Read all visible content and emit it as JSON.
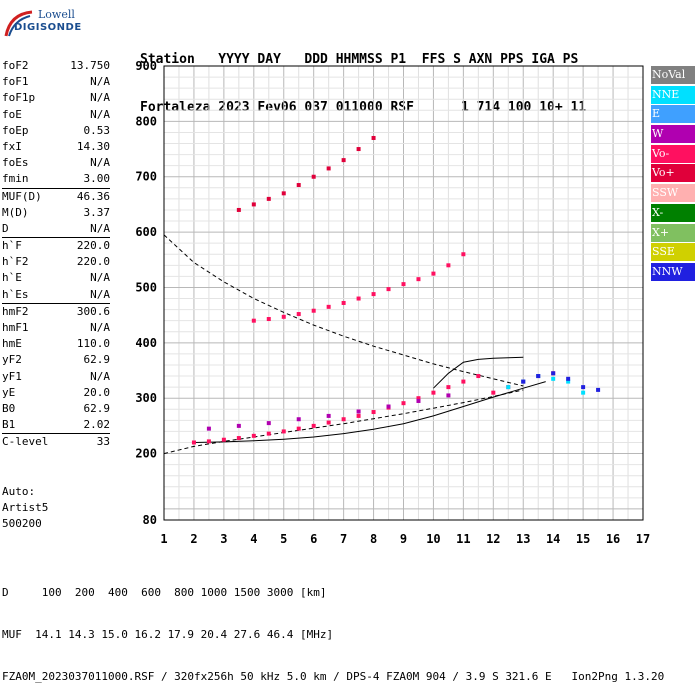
{
  "logo": {
    "line1": "Lowell",
    "line2": "DIGISONDE"
  },
  "header": {
    "labels": [
      "Station",
      "YYYY DAY",
      "DDD HHMMSS P1",
      "FFS S AXN PPS IGA PS"
    ],
    "values": [
      "Fortaleza",
      "2023 Fev06",
      "037 011000 RSF",
      "1 714 100 10+ 11"
    ]
  },
  "params": [
    {
      "label": "foF2",
      "value": "13.750"
    },
    {
      "label": "foF1",
      "value": "N/A"
    },
    {
      "label": "foF1p",
      "value": "N/A"
    },
    {
      "label": "foE",
      "value": "N/A"
    },
    {
      "label": "foEp",
      "value": "0.53"
    },
    {
      "label": "fxI",
      "value": "14.30"
    },
    {
      "label": "foEs",
      "value": "N/A"
    },
    {
      "label": "fmin",
      "value": "3.00",
      "sep": true
    },
    {
      "label": "MUF(D)",
      "value": "46.36"
    },
    {
      "label": "M(D)",
      "value": "3.37"
    },
    {
      "label": "D",
      "value": "N/A",
      "sep": true
    },
    {
      "label": "h`F",
      "value": "220.0"
    },
    {
      "label": "h`F2",
      "value": "220.0"
    },
    {
      "label": "h`E",
      "value": "N/A"
    },
    {
      "label": "h`Es",
      "value": "N/A",
      "sep": true
    },
    {
      "label": "hmF2",
      "value": "300.6"
    },
    {
      "label": "hmF1",
      "value": "N/A"
    },
    {
      "label": "hmE",
      "value": "110.0"
    },
    {
      "label": "yF2",
      "value": "62.9"
    },
    {
      "label": "yF1",
      "value": "N/A"
    },
    {
      "label": "yE",
      "value": "20.0"
    },
    {
      "label": "B0",
      "value": "62.9"
    },
    {
      "label": "B1",
      "value": "2.02",
      "sep": true
    },
    {
      "label": "C-level",
      "value": "33"
    }
  ],
  "auto": {
    "line1": "Auto:",
    "line2": "Artist5",
    "line3": "500200"
  },
  "legend": [
    {
      "label": "NoVal",
      "color": "#808080"
    },
    {
      "label": "NNE",
      "color": "#00e0ff"
    },
    {
      "label": "E",
      "color": "#3fa0ff"
    },
    {
      "label": "W",
      "color": "#b000b0"
    },
    {
      "label": "Vo-",
      "color": "#ff1060"
    },
    {
      "label": "Vo+",
      "color": "#e0003a"
    },
    {
      "label": "SSW",
      "color": "#ffb0b0"
    },
    {
      "label": "X-",
      "color": "#008000"
    },
    {
      "label": "X+",
      "color": "#80c060"
    },
    {
      "label": "SSE",
      "color": "#d0d000"
    },
    {
      "label": "NNW",
      "color": "#2020e0"
    }
  ],
  "chart_data": {
    "type": "scatter",
    "xlim": [
      1,
      17
    ],
    "ylim": [
      80,
      900
    ],
    "x_ticks": [
      "1",
      "2",
      "3",
      "4",
      "5",
      "6",
      "7",
      "8",
      "9",
      "10",
      "11",
      "12",
      "13",
      "14",
      "15",
      "16",
      "17"
    ],
    "y_ticks": [
      "80",
      "200",
      "300",
      "400",
      "500",
      "600",
      "700",
      "800",
      "900"
    ],
    "grid": true,
    "series": [
      {
        "color": "#ff1060",
        "x": [
          2.0,
          2.5,
          3.0,
          3.5,
          4.0,
          4.5,
          5.0,
          5.5,
          6.0,
          6.5,
          7.0,
          7.5,
          8.0,
          8.5,
          9.0,
          9.5,
          10.0,
          10.5,
          11.0,
          11.5,
          12.0,
          12.5,
          13.0,
          13.5,
          14.0
        ],
        "y": [
          220,
          222,
          225,
          228,
          232,
          236,
          240,
          245,
          250,
          256,
          262,
          268,
          275,
          283,
          291,
          300,
          310,
          320,
          330,
          340,
          310,
          320,
          330,
          340,
          345
        ]
      },
      {
        "color": "#b000b0",
        "x": [
          2.5,
          3.5,
          4.5,
          5.5,
          6.5,
          7.5,
          8.5,
          9.5,
          10.5
        ],
        "y": [
          245,
          250,
          255,
          262,
          268,
          276,
          285,
          295,
          305
        ]
      },
      {
        "color": "#ff1060",
        "x": [
          4.0,
          4.5,
          5.0,
          5.5,
          6.0,
          6.5,
          7.0,
          7.5,
          8.0,
          8.5,
          9.0,
          9.5,
          10.0,
          10.5,
          11.0
        ],
        "y": [
          440,
          443,
          447,
          452,
          458,
          465,
          472,
          480,
          488,
          497,
          506,
          515,
          525,
          540,
          560
        ]
      },
      {
        "color": "#e0003a",
        "x": [
          3.5,
          4.0,
          4.5,
          5.0,
          5.5,
          6.0,
          6.5,
          7.0,
          7.5,
          8.0
        ],
        "y": [
          640,
          650,
          660,
          670,
          685,
          700,
          715,
          730,
          750,
          770
        ]
      },
      {
        "color": "#00e0ff",
        "x": [
          12.5,
          13.0,
          13.5,
          14.0,
          14.5,
          15.0
        ],
        "y": [
          320,
          330,
          340,
          335,
          330,
          310
        ]
      },
      {
        "color": "#2020e0",
        "x": [
          13.0,
          13.5,
          14.0,
          14.5,
          15.0,
          15.5
        ],
        "y": [
          330,
          340,
          345,
          335,
          320,
          315
        ]
      }
    ],
    "curves": [
      {
        "style": "dashed",
        "x": [
          1.0,
          2.0,
          3.0,
          4.0,
          5.0,
          6.0,
          7.0,
          8.0,
          9.0,
          10.0,
          11.0,
          12.0,
          13.0
        ],
        "y": [
          595,
          545,
          510,
          480,
          455,
          432,
          412,
          394,
          378,
          362,
          348,
          335,
          322
        ]
      },
      {
        "style": "dashed",
        "x": [
          1.0,
          2.0,
          3.0,
          4.0,
          5.0,
          6.0,
          7.0,
          8.0,
          9.0,
          10.0,
          11.0,
          12.0,
          13.0
        ],
        "y": [
          200,
          213,
          222,
          230,
          238,
          246,
          254,
          263,
          272,
          282,
          292,
          303,
          315
        ]
      },
      {
        "style": "solid",
        "x": [
          2.0,
          3.0,
          4.0,
          5.0,
          6.0,
          7.0,
          8.0,
          9.0,
          10.0,
          11.0,
          12.0,
          13.0,
          13.75
        ],
        "y": [
          220,
          221,
          223,
          226,
          230,
          236,
          244,
          254,
          268,
          285,
          302,
          318,
          330
        ]
      },
      {
        "style": "solid",
        "x": [
          10.0,
          10.5,
          11.0,
          11.5,
          12.0,
          12.5,
          13.0
        ],
        "y": [
          318,
          345,
          365,
          370,
          372,
          373,
          374
        ]
      }
    ]
  },
  "footer": {
    "line1": "D     100  200  400  600  800 1000 1500 3000 [km]",
    "line2": "MUF  14.1 14.3 15.0 16.2 17.9 20.4 27.6 46.4 [MHz]",
    "line3": "FZA0M_2023037011000.RSF / 320fx256h 50 kHz 5.0 km / DPS-4 FZA0M 904 / 3.9 S 321.6 E   Ion2Png 1.3.20"
  }
}
